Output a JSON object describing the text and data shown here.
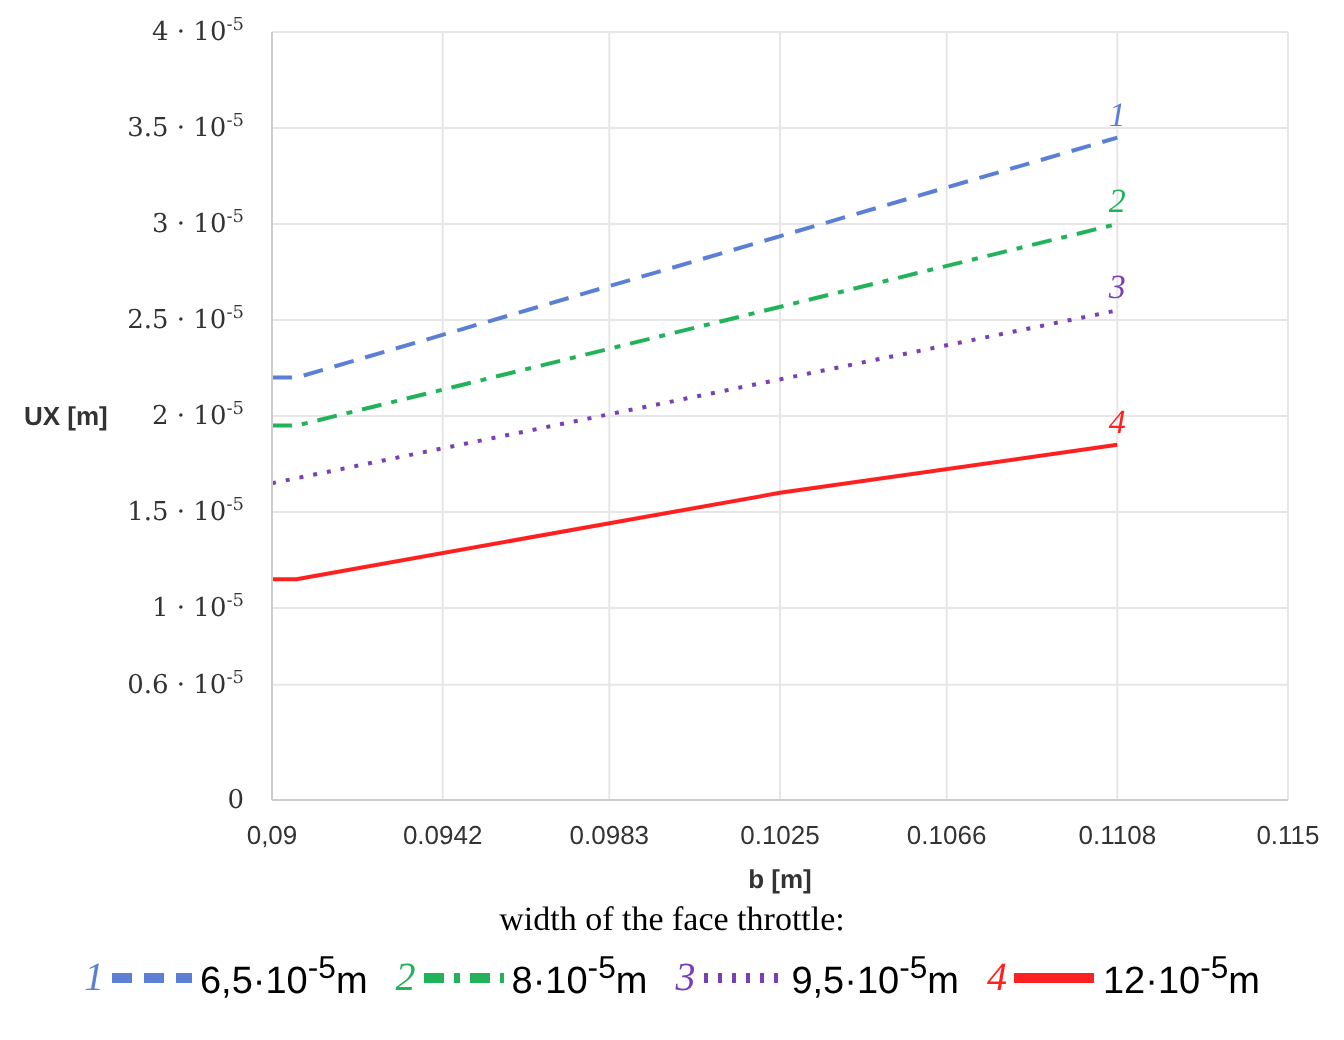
{
  "chart_data": {
    "type": "line",
    "xlabel": "b [m]",
    "ylabel": "UX [m]",
    "legend_title": "width of the face throttle:",
    "xlim": [
      0.09,
      0.115
    ],
    "xticks": [
      {
        "value": 0.09,
        "label": "0,09"
      },
      0.0942,
      0.0983,
      0.1025,
      0.1066,
      0.1108,
      0.115
    ],
    "ylim": [
      0,
      4e-05
    ],
    "yticks": [
      {
        "value": 0,
        "label": "0"
      },
      {
        "value": 6e-06,
        "label": "0.6 · 10$^{-5}$"
      },
      {
        "value": 1e-05,
        "label": "1 · 10$^{-5}$"
      },
      {
        "value": 1.5e-05,
        "label": "1.5 · 10$^{-5}$"
      },
      {
        "value": 2e-05,
        "label": "2 · 10$^{-5}$"
      },
      {
        "value": 2.5e-05,
        "label": "2.5 · 10$^{-5}$"
      },
      {
        "value": 3e-05,
        "label": "3 · 10$^{-5}$"
      },
      {
        "value": 3.5e-05,
        "label": "3.5 · 10$^{-5}$"
      },
      {
        "value": 4e-05,
        "label": "4 · 10$^{-5}$"
      }
    ],
    "grid": true,
    "legend": "bottom",
    "marker": "none",
    "series": [
      {
        "name": "6,5·10$^{-5}$m",
        "color": "#5b7fd4",
        "line_style": "dashed",
        "x": [
          0.09,
          0.0906,
          0.1108
        ],
        "values": [
          2.2e-05,
          2.2e-05,
          3.45e-05
        ]
      },
      {
        "name": "8·10$^{-5}$m",
        "color": "#21b25a",
        "line_style": "dashdot",
        "x": [
          0.09,
          0.0906,
          0.1108
        ],
        "values": [
          1.95e-05,
          1.95e-05,
          3e-05
        ]
      },
      {
        "name": "9,5·10$^{-5}$m",
        "color": "#7a3fb5",
        "line_style": "dotted",
        "x": [
          0.09,
          0.1108
        ],
        "values": [
          1.65e-05,
          2.55e-05
        ]
      },
      {
        "name": "12·10$^{-5}$m",
        "color": "#ff2020",
        "line_style": "solid",
        "x": [
          0.09,
          0.0906,
          0.1025,
          0.1108
        ],
        "values": [
          1.15e-05,
          1.15e-05,
          1.6e-05,
          1.85e-05
        ]
      }
    ],
    "annotations": [
      "1",
      "2",
      "3",
      "4"
    ]
  }
}
